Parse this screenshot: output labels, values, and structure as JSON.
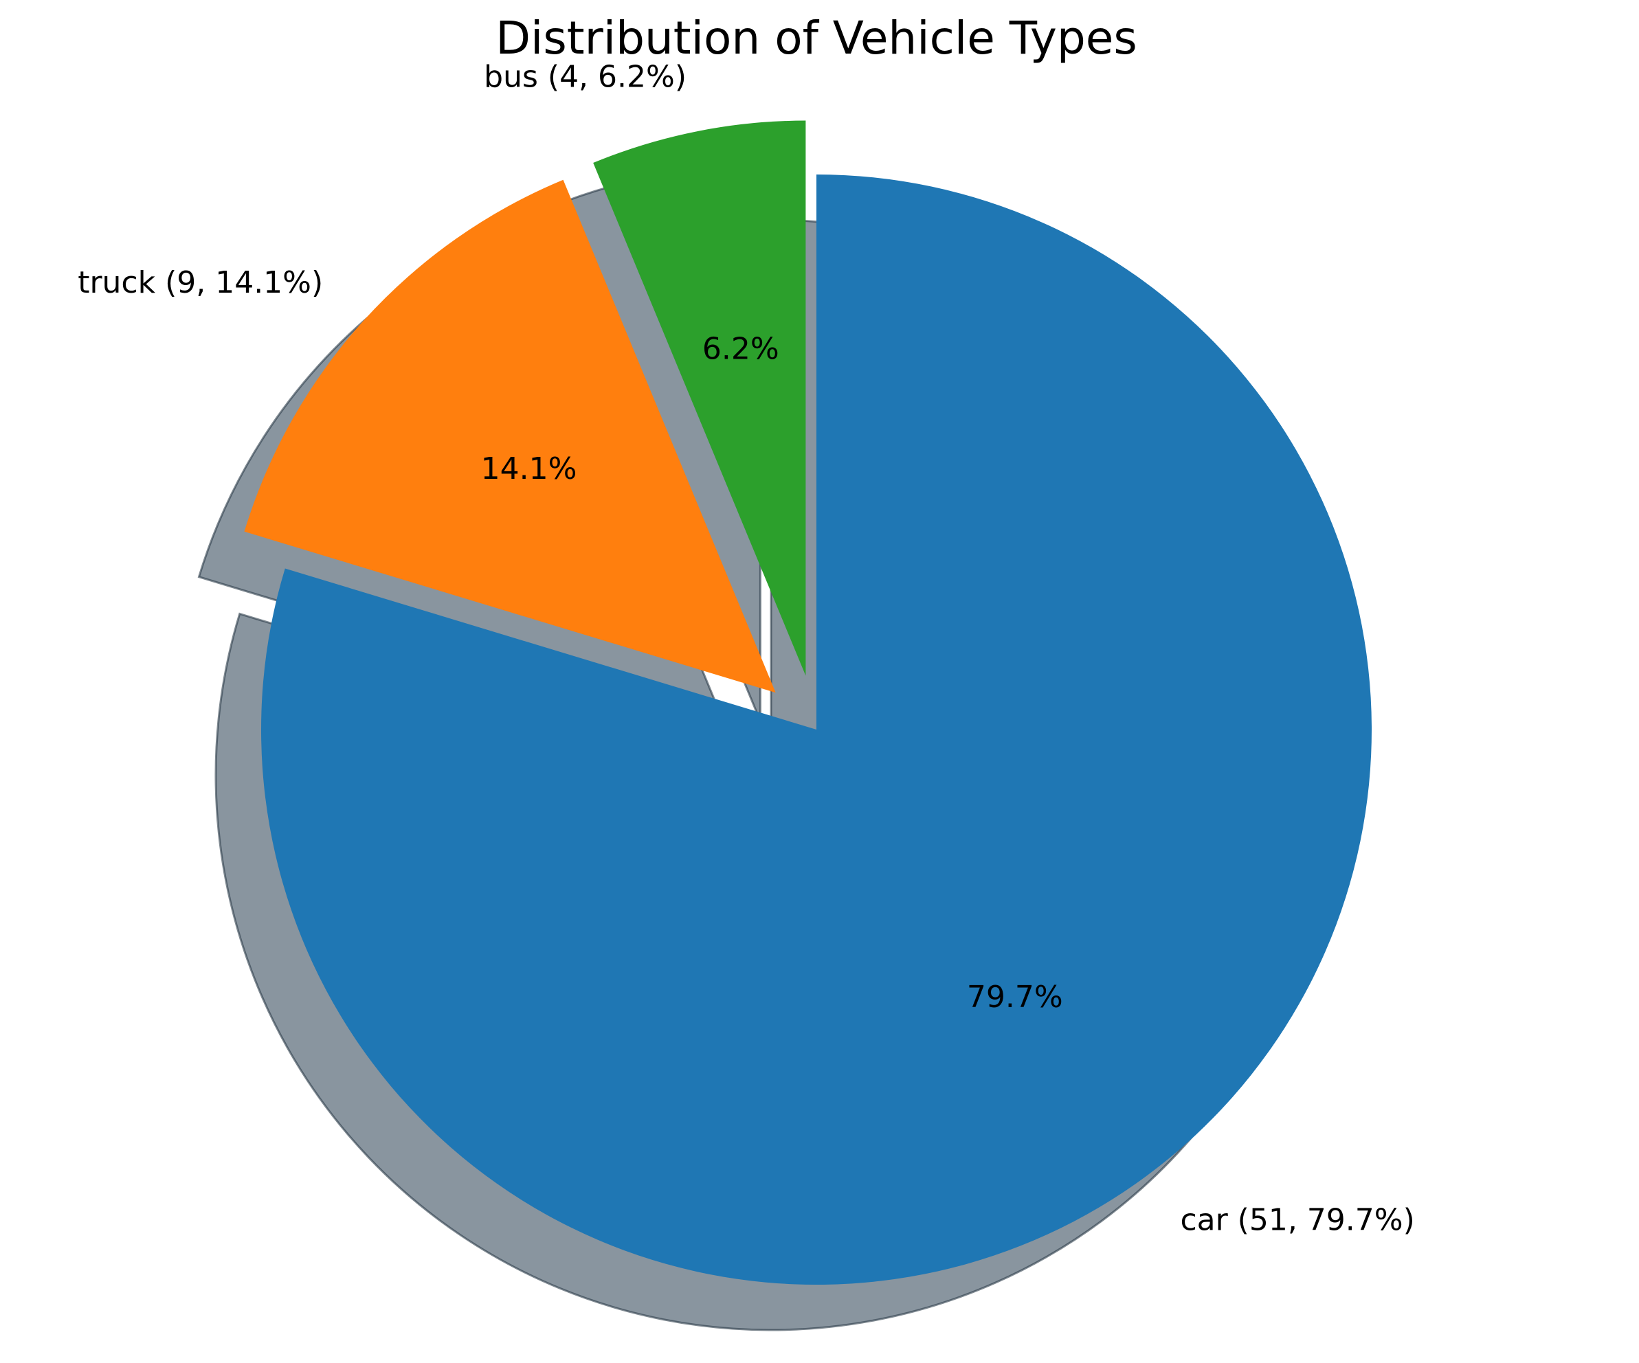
{
  "chart_data": {
    "type": "pie",
    "title": "Distribution of Vehicle Types",
    "slices": [
      {
        "name": "car",
        "value": 51,
        "percent_label": "79.7%",
        "outer_label": "car (51, 79.7%)",
        "color": "#1f77b4",
        "exploded": false
      },
      {
        "name": "truck",
        "value": 9,
        "percent_label": "14.1%",
        "outer_label": "truck (9, 14.1%)",
        "color": "#ff7f0e",
        "exploded": true
      },
      {
        "name": "bus",
        "value": 4,
        "percent_label": "6.2%",
        "outer_label": "bus (4, 6.2%)",
        "color": "#2ca02c",
        "exploded": true
      }
    ],
    "start_angle_deg": 90,
    "direction": "clockwise",
    "shadow": true,
    "legend": "none"
  }
}
